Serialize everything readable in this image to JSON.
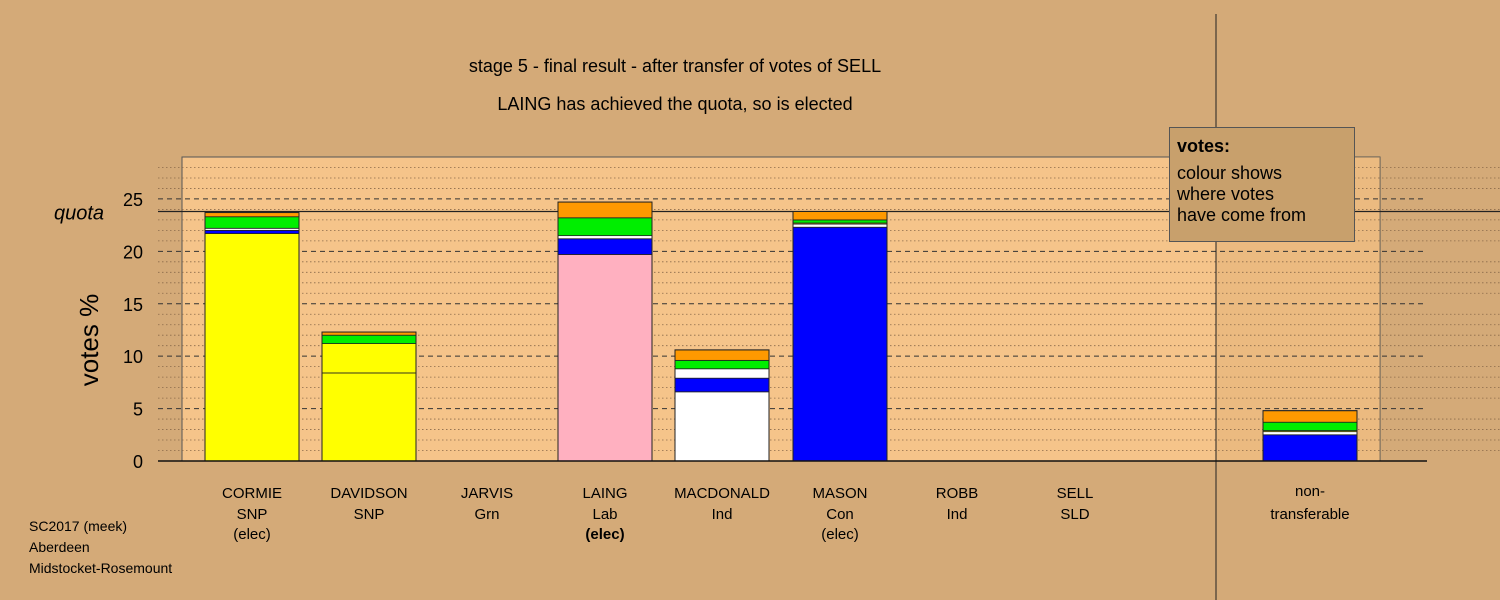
{
  "header": {
    "title_line1": "stage 5 - final result - after transfer of votes of SELL",
    "title_line2": "LAING has achieved the quota, so is elected"
  },
  "legend": {
    "title": "votes:",
    "body_lines": [
      "colour shows",
      "where votes",
      "have come from"
    ]
  },
  "footer": {
    "lines": [
      "SC2017 (meek)",
      "Aberdeen",
      "Midstocket-Rosemount"
    ]
  },
  "colors": {
    "background": "#d4aa78",
    "plot_area": "#f5c48a",
    "SNP": "#ffff00",
    "Lab": "#ffb0c0",
    "Ind": "#ffffff",
    "Con": "#0000ff",
    "Grn": "#00ee00",
    "SLD": "#ff9900"
  },
  "chart_data": {
    "type": "bar",
    "stacked": true,
    "ylabel": "votes %",
    "ylim": [
      0,
      29
    ],
    "yticks": [
      0,
      5,
      10,
      15,
      20,
      25
    ],
    "quota": 23.8,
    "quota_label": "quota",
    "grid": true,
    "legend_position": "top-right",
    "candidates": [
      {
        "name": "CORMIE",
        "party": "SNP",
        "status": "(elec)",
        "status_bold": false,
        "segments": [
          {
            "source": "SNP",
            "value": 21.7
          },
          {
            "source": "Con",
            "value": 0.3
          },
          {
            "source": "Ind",
            "value": 0.2
          },
          {
            "source": "Grn",
            "value": 1.1
          },
          {
            "source": "SLD",
            "value": 0.4
          }
        ]
      },
      {
        "name": "DAVIDSON",
        "party": "SNP",
        "status": "",
        "status_bold": false,
        "segments": [
          {
            "source": "SNP",
            "value": 8.4
          },
          {
            "source": "SNP",
            "value": 2.8
          },
          {
            "source": "Grn",
            "value": 0.8
          },
          {
            "source": "SLD",
            "value": 0.3
          }
        ]
      },
      {
        "name": "JARVIS",
        "party": "Grn",
        "status": "",
        "status_bold": false,
        "segments": []
      },
      {
        "name": "LAING",
        "party": "Lab",
        "status": "(elec)",
        "status_bold": true,
        "segments": [
          {
            "source": "Lab",
            "value": 19.7
          },
          {
            "source": "Con",
            "value": 1.5
          },
          {
            "source": "Ind",
            "value": 0.3
          },
          {
            "source": "Grn",
            "value": 1.7
          },
          {
            "source": "SLD",
            "value": 1.5
          }
        ]
      },
      {
        "name": "MACDONALD",
        "party": "Ind",
        "status": "",
        "status_bold": false,
        "segments": [
          {
            "source": "Ind",
            "value": 6.6
          },
          {
            "source": "Con",
            "value": 1.3
          },
          {
            "source": "Ind",
            "value": 0.9
          },
          {
            "source": "Grn",
            "value": 0.8
          },
          {
            "source": "SLD",
            "value": 1.0
          }
        ]
      },
      {
        "name": "MASON",
        "party": "Con",
        "status": "(elec)",
        "status_bold": false,
        "segments": [
          {
            "source": "Con",
            "value": 22.3
          },
          {
            "source": "Ind",
            "value": 0.3
          },
          {
            "source": "SNP",
            "value": 0.1
          },
          {
            "source": "Grn",
            "value": 0.3
          },
          {
            "source": "SLD",
            "value": 0.8
          }
        ]
      },
      {
        "name": "ROBB",
        "party": "Ind",
        "status": "",
        "status_bold": false,
        "segments": []
      },
      {
        "name": "SELL",
        "party": "SLD",
        "status": "",
        "status_bold": false,
        "segments": []
      }
    ],
    "nontransferable": {
      "name": "non-",
      "name2": "transferable",
      "segments": [
        {
          "source": "Con",
          "value": 2.5
        },
        {
          "source": "Ind",
          "value": 0.3
        },
        {
          "source": "SNP",
          "value": 0.1
        },
        {
          "source": "Grn",
          "value": 0.8
        },
        {
          "source": "SLD",
          "value": 1.1
        }
      ]
    }
  }
}
